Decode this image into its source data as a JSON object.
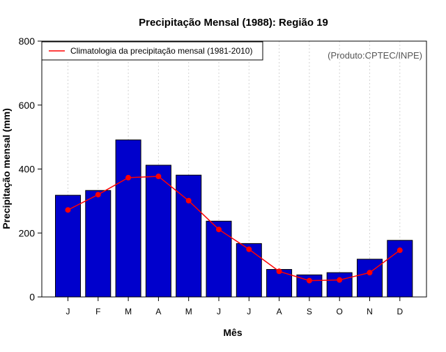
{
  "chart_data": {
    "type": "bar",
    "title": "Precipitação Mensal (1988): Região 19",
    "xlabel": "Mês",
    "ylabel": "Precipitação mensal (mm)",
    "source_note": "(Produto:CPTEC/INPE)",
    "ylim": [
      0,
      800
    ],
    "yticks": [
      0,
      200,
      400,
      600,
      800
    ],
    "grid": true,
    "legend_position": "top-left",
    "categories": [
      "J",
      "F",
      "M",
      "A",
      "M",
      "J",
      "J",
      "A",
      "S",
      "O",
      "N",
      "D"
    ],
    "series": [
      {
        "name": "Precipitação mensal 1988",
        "kind": "bar",
        "color": "#0000cc",
        "values": [
          318,
          333,
          491,
          412,
          381,
          237,
          167,
          86,
          69,
          76,
          118,
          177
        ]
      },
      {
        "name": "Climatologia da precipitação mensal (1981-2010)",
        "kind": "line",
        "color": "#ff0000",
        "values": [
          272,
          320,
          373,
          377,
          301,
          211,
          149,
          80,
          51,
          53,
          76,
          146
        ]
      }
    ]
  }
}
